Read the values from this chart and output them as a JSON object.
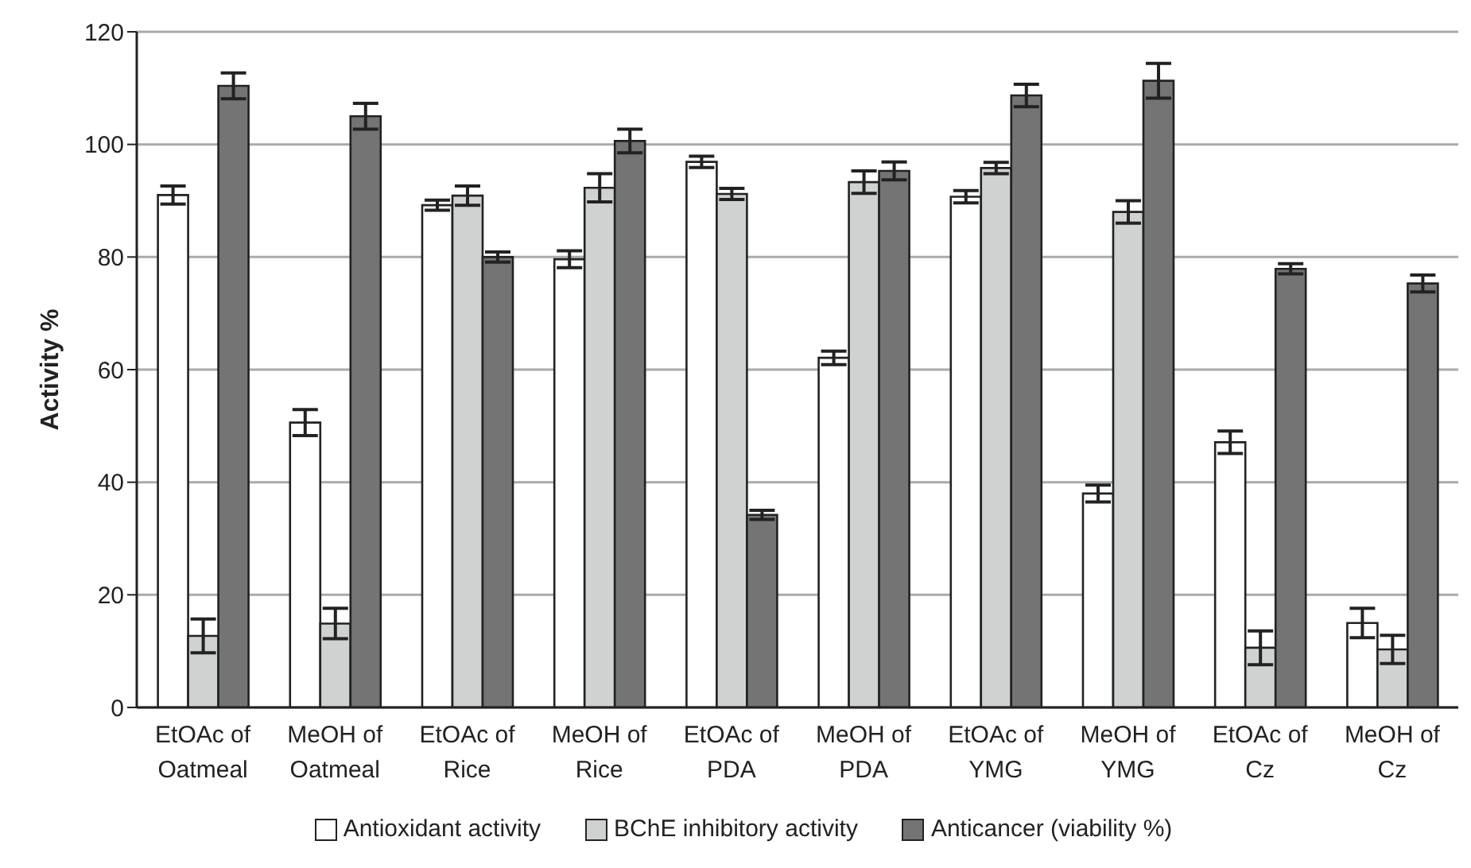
{
  "chart_data": {
    "type": "bar",
    "ylabel": "Activity %",
    "categories": [
      "EtOAc of Oatmeal",
      "MeOH of Oatmeal",
      "EtOAc of Rice",
      "MeOH of Rice",
      "EtOAc of PDA",
      "MeOH of PDA",
      "EtOAc of YMG",
      "MeOH of YMG",
      "EtOAc of Cz",
      "MeOH of Cz"
    ],
    "series": [
      {
        "name": "Antioxidant activity",
        "color": "#ffffff",
        "values": [
          91.0,
          50.6,
          89.2,
          79.6,
          96.9,
          62.1,
          90.7,
          38.0,
          47.1,
          15.0
        ],
        "errors": [
          1.6,
          2.3,
          0.9,
          1.5,
          1.0,
          1.2,
          1.1,
          1.5,
          2.0,
          2.6
        ]
      },
      {
        "name": "BChE inhibitory activity",
        "color": "#d0d2d1",
        "values": [
          12.7,
          14.9,
          90.9,
          92.3,
          91.2,
          93.3,
          95.8,
          88.0,
          10.6,
          10.3
        ],
        "errors": [
          3.0,
          2.7,
          1.7,
          2.5,
          1.0,
          2.0,
          1.0,
          2.0,
          3.0,
          2.5
        ]
      },
      {
        "name": "Anticancer (viability %)",
        "color": "#747474",
        "values": [
          110.4,
          105.0,
          80.0,
          100.6,
          34.2,
          95.3,
          108.7,
          111.3,
          77.9,
          75.3
        ],
        "errors": [
          2.3,
          2.3,
          0.9,
          2.1,
          0.8,
          1.6,
          2.0,
          3.1,
          0.9,
          1.5
        ]
      }
    ],
    "ylim": [
      0,
      120
    ],
    "yticks": [
      0,
      20,
      40,
      60,
      80,
      100,
      120
    ],
    "grid": "y",
    "legend": "bottom"
  }
}
